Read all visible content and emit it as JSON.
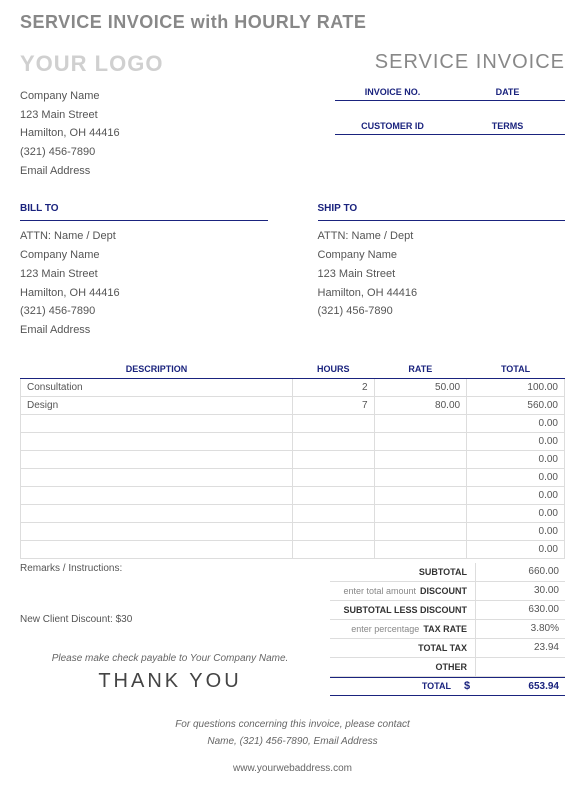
{
  "page_title": "SERVICE INVOICE with HOURLY RATE",
  "logo_text": "YOUR LOGO",
  "invoice_title": "SERVICE INVOICE",
  "company": {
    "name": "Company Name",
    "street": "123 Main Street",
    "citystate": "Hamilton, OH  44416",
    "phone": "(321) 456-7890",
    "email": "Email Address"
  },
  "meta": {
    "invoice_no_label": "INVOICE NO.",
    "date_label": "DATE",
    "customer_id_label": "CUSTOMER ID",
    "terms_label": "TERMS"
  },
  "bill_to_label": "BILL TO",
  "ship_to_label": "SHIP TO",
  "bill_to": {
    "attn": "ATTN: Name / Dept",
    "company": "Company Name",
    "street": "123 Main Street",
    "citystate": "Hamilton, OH  44416",
    "phone": "(321) 456-7890",
    "email": "Email Address"
  },
  "ship_to": {
    "attn": "ATTN: Name / Dept",
    "company": "Company Name",
    "street": "123 Main Street",
    "citystate": "Hamilton, OH  44416",
    "phone": "(321) 456-7890"
  },
  "columns": {
    "description": "DESCRIPTION",
    "hours": "HOURS",
    "rate": "RATE",
    "total": "TOTAL"
  },
  "rows": [
    {
      "desc": "Consultation",
      "hours": "2",
      "rate": "50.00",
      "total": "100.00"
    },
    {
      "desc": "Design",
      "hours": "7",
      "rate": "80.00",
      "total": "560.00"
    },
    {
      "desc": "",
      "hours": "",
      "rate": "",
      "total": "0.00"
    },
    {
      "desc": "",
      "hours": "",
      "rate": "",
      "total": "0.00"
    },
    {
      "desc": "",
      "hours": "",
      "rate": "",
      "total": "0.00"
    },
    {
      "desc": "",
      "hours": "",
      "rate": "",
      "total": "0.00"
    },
    {
      "desc": "",
      "hours": "",
      "rate": "",
      "total": "0.00"
    },
    {
      "desc": "",
      "hours": "",
      "rate": "",
      "total": "0.00"
    },
    {
      "desc": "",
      "hours": "",
      "rate": "",
      "total": "0.00"
    },
    {
      "desc": "",
      "hours": "",
      "rate": "",
      "total": "0.00"
    }
  ],
  "remarks_label": "Remarks / Instructions:",
  "remarks_text": "New Client Discount: $30",
  "payable_line": "Please make check payable to Your Company Name.",
  "thanks": "THANK YOU",
  "totals": {
    "subtotal_label": "SUBTOTAL",
    "subtotal": "660.00",
    "discount_hint": "enter total amount",
    "discount_label": "DISCOUNT",
    "discount": "30.00",
    "sub_less_label": "SUBTOTAL LESS DISCOUNT",
    "sub_less": "630.00",
    "taxrate_hint": "enter percentage",
    "taxrate_label": "TAX RATE",
    "taxrate": "3.80%",
    "totaltax_label": "TOTAL TAX",
    "totaltax": "23.94",
    "other_label": "OTHER",
    "other": "",
    "total_label": "TOTAL",
    "currency": "$",
    "total": "653.94"
  },
  "footer": {
    "line1": "For questions concerning this invoice, please contact",
    "line2": "Name, (321) 456-7890, Email Address",
    "web": "www.yourwebaddress.com"
  }
}
